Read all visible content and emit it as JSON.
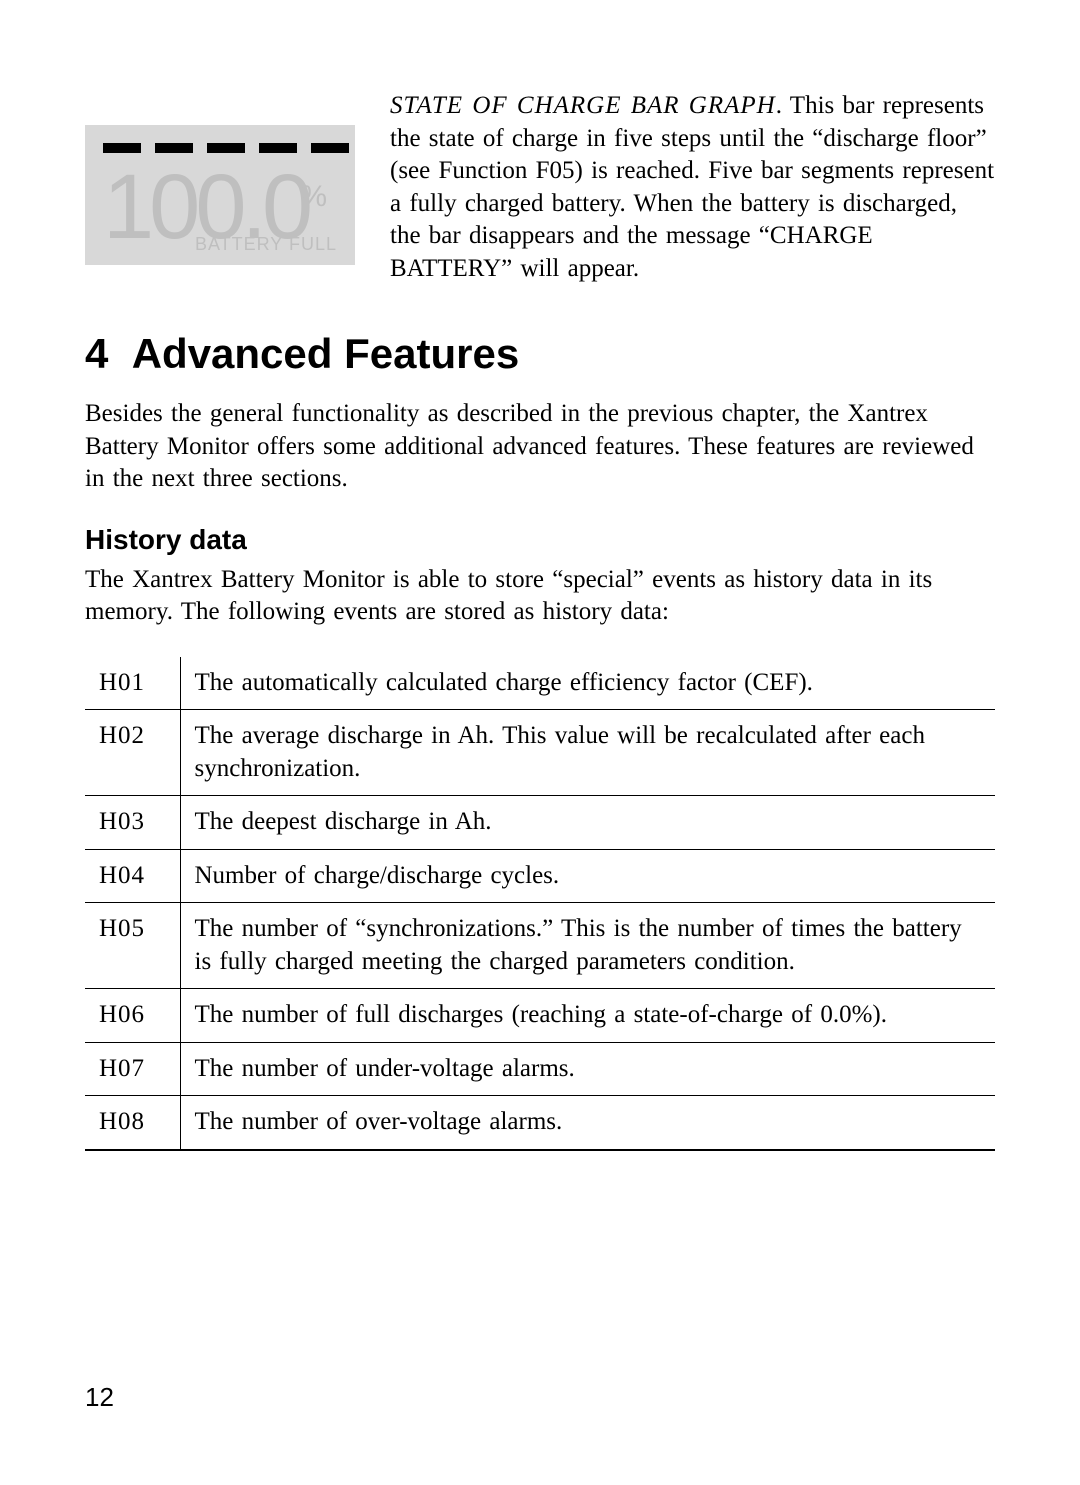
{
  "lcd": {
    "digits": "100.0",
    "percent": "%",
    "label": "BATTERY FULL",
    "bars": 5
  },
  "barGraph": {
    "title": "STATE OF CHARGE BAR GRAPH",
    "body": "This bar represents the state of charge in five steps until the “discharge floor” (see Function F05) is reached. Five bar segments represent a fully charged battery. When the battery is discharged, the bar disappears and the message “CHARGE BATTERY” will appear."
  },
  "section": {
    "number": "4",
    "title": "Advanced Features",
    "intro": "Besides the general functionality as described in the previous chapter, the Xantrex Battery Monitor offers some additional advanced features. These features are reviewed in the next three sections."
  },
  "history": {
    "title": "History data",
    "intro": "The Xantrex Battery Monitor is able to store “special” events as history data in its memory. The following events are stored as history data:",
    "rows": [
      {
        "code": "H01",
        "desc": "The automatically calculated charge efficiency factor (CEF)."
      },
      {
        "code": "H02",
        "desc": "The average discharge in Ah. This value will be recalculated after each synchronization."
      },
      {
        "code": "H03",
        "desc": "The deepest discharge in Ah."
      },
      {
        "code": "H04",
        "desc": "Number of charge/discharge cycles."
      },
      {
        "code": "H05",
        "desc": "The number of “synchronizations.” This is the number of times the battery is fully charged meeting the charged parameters condition."
      },
      {
        "code": "H06",
        "desc": "The number of full discharges (reaching a state-of-charge of 0.0%)."
      },
      {
        "code": "H07",
        "desc": "The number of under-voltage alarms."
      },
      {
        "code": "H08",
        "desc": "The number of over-voltage alarms."
      }
    ]
  },
  "pageNumber": "12"
}
